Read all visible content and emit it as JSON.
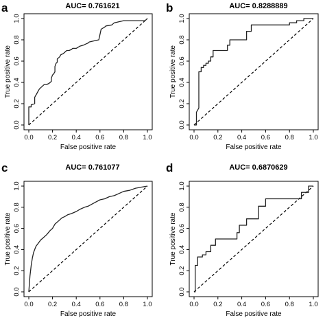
{
  "chart_data": [
    {
      "panel": "a",
      "type": "line",
      "title": "AUC= 0.761621",
      "xlabel": "False positive rate",
      "ylabel": "True positive rate",
      "xlim": [
        0,
        1
      ],
      "ylim": [
        0,
        1
      ],
      "xticks": [
        "0.0",
        "0.2",
        "0.4",
        "0.6",
        "0.8",
        "1.0"
      ],
      "yticks": [
        "0.0",
        "0.2",
        "0.4",
        "0.6",
        "0.8",
        "1.0"
      ],
      "reference_line": [
        [
          0,
          0
        ],
        [
          1,
          1
        ]
      ],
      "series": [
        {
          "x": [
            0.0,
            0.0,
            0.02,
            0.02,
            0.05,
            0.05,
            0.07,
            0.08,
            0.09,
            0.1,
            0.11,
            0.13,
            0.15,
            0.17,
            0.19,
            0.19,
            0.2,
            0.21,
            0.22,
            0.22,
            0.23,
            0.24,
            0.24,
            0.26,
            0.27,
            0.29,
            0.3,
            0.32,
            0.34,
            0.36,
            0.37,
            0.4,
            0.43,
            0.46,
            0.48,
            0.5,
            0.51,
            0.55,
            0.59,
            0.6,
            0.61,
            0.64,
            0.65,
            0.7,
            0.72,
            0.8,
            0.9,
            0.95,
            0.98,
            1.0
          ],
          "y": [
            0.0,
            0.17,
            0.17,
            0.19,
            0.2,
            0.26,
            0.3,
            0.32,
            0.34,
            0.35,
            0.36,
            0.38,
            0.38,
            0.39,
            0.41,
            0.44,
            0.47,
            0.48,
            0.5,
            0.55,
            0.58,
            0.59,
            0.62,
            0.64,
            0.66,
            0.67,
            0.68,
            0.7,
            0.7,
            0.71,
            0.72,
            0.72,
            0.74,
            0.75,
            0.76,
            0.77,
            0.78,
            0.79,
            0.8,
            0.85,
            0.9,
            0.92,
            0.93,
            0.94,
            0.96,
            0.98,
            0.98,
            0.98,
            0.98,
            1.0
          ]
        }
      ]
    },
    {
      "panel": "b",
      "type": "line",
      "title": "AUC= 0.8288889",
      "xlabel": "False positive rate",
      "ylabel": "True positive rate",
      "xlim": [
        0,
        1
      ],
      "ylim": [
        0,
        1
      ],
      "xticks": [
        "0.0",
        "0.2",
        "0.4",
        "0.6",
        "0.8",
        "1.0"
      ],
      "yticks": [
        "0.0",
        "0.2",
        "0.4",
        "0.6",
        "0.8",
        "1.0"
      ],
      "reference_line": [
        [
          0,
          0
        ],
        [
          1,
          1
        ]
      ],
      "series": [
        {
          "x": [
            0.0,
            0.02,
            0.02,
            0.04,
            0.04,
            0.06,
            0.06,
            0.08,
            0.08,
            0.1,
            0.1,
            0.12,
            0.12,
            0.14,
            0.14,
            0.16,
            0.16,
            0.28,
            0.28,
            0.3,
            0.3,
            0.44,
            0.44,
            0.48,
            0.48,
            0.8,
            0.8,
            0.86,
            0.86,
            0.92,
            0.92,
            1.0
          ],
          "y": [
            0.0,
            0.0,
            0.12,
            0.16,
            0.5,
            0.5,
            0.54,
            0.54,
            0.56,
            0.56,
            0.58,
            0.58,
            0.6,
            0.6,
            0.64,
            0.64,
            0.7,
            0.7,
            0.75,
            0.75,
            0.8,
            0.8,
            0.88,
            0.88,
            0.94,
            0.94,
            0.96,
            0.96,
            0.98,
            0.98,
            1.0,
            1.0
          ]
        }
      ]
    },
    {
      "panel": "c",
      "type": "line",
      "title": "AUC= 0.761077",
      "xlabel": "False positive rate",
      "ylabel": "True positive rate",
      "xlim": [
        0,
        1
      ],
      "ylim": [
        0,
        1
      ],
      "xticks": [
        "0.0",
        "0.2",
        "0.4",
        "0.6",
        "0.8",
        "1.0"
      ],
      "yticks": [
        "0.0",
        "0.2",
        "0.4",
        "0.6",
        "0.8",
        "1.0"
      ],
      "reference_line": [
        [
          0,
          0
        ],
        [
          1,
          1
        ]
      ],
      "series": [
        {
          "x": [
            0.0,
            0.01,
            0.02,
            0.03,
            0.04,
            0.05,
            0.06,
            0.08,
            0.1,
            0.12,
            0.15,
            0.18,
            0.2,
            0.22,
            0.25,
            0.28,
            0.3,
            0.33,
            0.36,
            0.4,
            0.43,
            0.47,
            0.5,
            0.55,
            0.6,
            0.64,
            0.68,
            0.72,
            0.76,
            0.8,
            0.85,
            0.9,
            0.95,
            1.0
          ],
          "y": [
            0.0,
            0.15,
            0.25,
            0.32,
            0.37,
            0.4,
            0.43,
            0.46,
            0.49,
            0.51,
            0.54,
            0.58,
            0.6,
            0.64,
            0.67,
            0.7,
            0.71,
            0.73,
            0.74,
            0.76,
            0.78,
            0.8,
            0.81,
            0.84,
            0.87,
            0.88,
            0.9,
            0.91,
            0.93,
            0.95,
            0.96,
            0.98,
            0.99,
            1.0
          ]
        }
      ]
    },
    {
      "panel": "d",
      "type": "line",
      "title": "AUC= 0.6870629",
      "xlabel": "False positive rate",
      "ylabel": "True positive rate",
      "xlim": [
        0,
        1
      ],
      "ylim": [
        0,
        1
      ],
      "xticks": [
        "0.0",
        "0.2",
        "0.4",
        "0.6",
        "0.8",
        "1.0"
      ],
      "yticks": [
        "0.0",
        "0.2",
        "0.4",
        "0.6",
        "0.8",
        "1.0"
      ],
      "reference_line": [
        [
          0,
          0
        ],
        [
          1,
          1
        ]
      ],
      "series": [
        {
          "x": [
            0.0,
            0.01,
            0.01,
            0.03,
            0.03,
            0.07,
            0.07,
            0.1,
            0.1,
            0.14,
            0.14,
            0.18,
            0.18,
            0.36,
            0.36,
            0.38,
            0.38,
            0.44,
            0.44,
            0.54,
            0.54,
            0.6,
            0.6,
            0.9,
            0.9,
            0.96,
            0.96,
            1.0
          ],
          "y": [
            0.0,
            0.0,
            0.25,
            0.25,
            0.33,
            0.33,
            0.35,
            0.35,
            0.38,
            0.38,
            0.44,
            0.44,
            0.5,
            0.5,
            0.56,
            0.56,
            0.63,
            0.63,
            0.69,
            0.69,
            0.81,
            0.81,
            0.88,
            0.88,
            0.94,
            0.94,
            1.0,
            1.0
          ]
        }
      ]
    }
  ]
}
